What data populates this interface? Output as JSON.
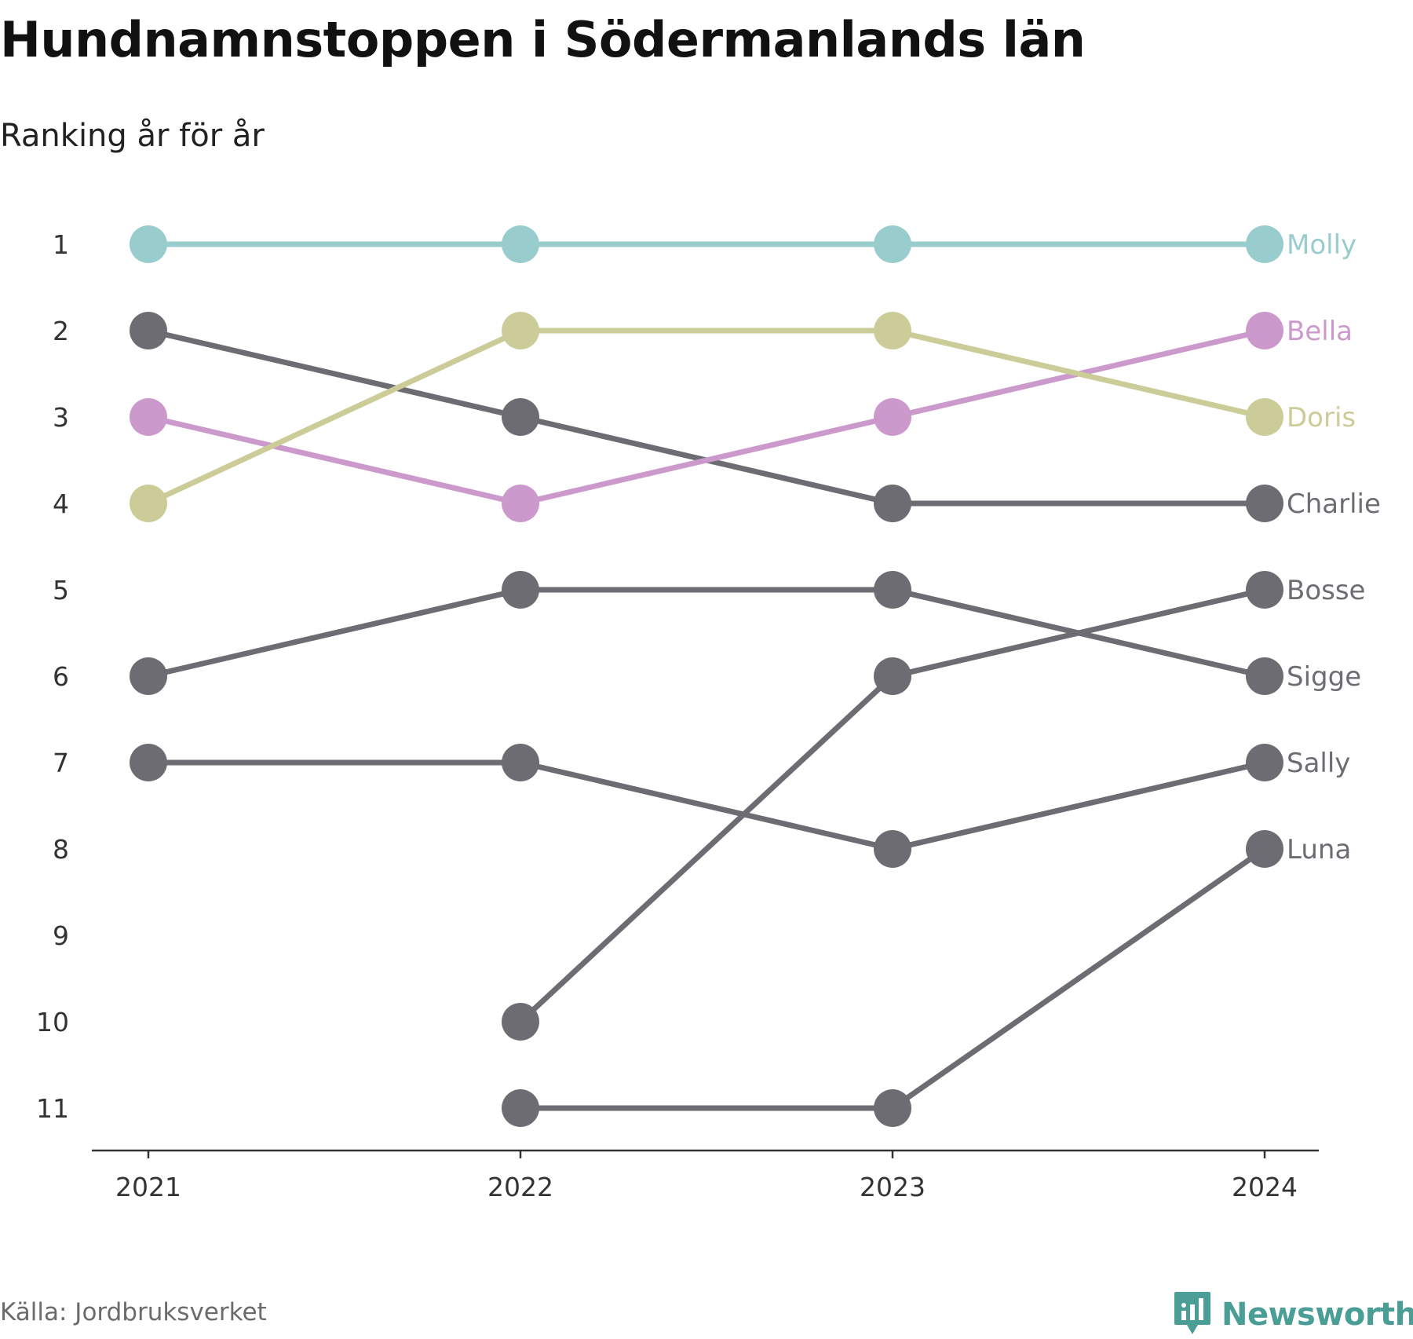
{
  "title": "Hundnamnstoppen i Södermanlands län",
  "subtitle": "Ranking år för år",
  "source": "Källa: Jordbruksverket",
  "brand": {
    "name": "Newsworthy",
    "icon": "newsworthy-logo-icon",
    "color": "#4a9e96"
  },
  "chart_data": {
    "type": "line",
    "title": "Hundnamnstoppen i Södermanlands län",
    "subtitle": "Ranking år för år",
    "x": [
      "2021",
      "2022",
      "2023",
      "2024"
    ],
    "y_ticks": [
      "1",
      "2",
      "3",
      "4",
      "5",
      "6",
      "7",
      "8",
      "9",
      "10",
      "11"
    ],
    "ylim": [
      1,
      11
    ],
    "y_inverted": true,
    "grid": false,
    "legend": "direct labels at right end of lines",
    "series": [
      {
        "name": "Molly",
        "values": [
          1,
          1,
          1,
          1
        ],
        "color": "#99cccc"
      },
      {
        "name": "Bella",
        "values": [
          3,
          4,
          3,
          2
        ],
        "color": "#cc99cc"
      },
      {
        "name": "Doris",
        "values": [
          4,
          2,
          2,
          3
        ],
        "color": "#cccc99"
      },
      {
        "name": "Charlie",
        "values": [
          2,
          3,
          4,
          4
        ],
        "color": "#6d6c73"
      },
      {
        "name": "Bosse",
        "values": [
          null,
          10,
          6,
          5
        ],
        "color": "#6d6c73"
      },
      {
        "name": "Sigge",
        "values": [
          6,
          5,
          5,
          6
        ],
        "color": "#6d6c73"
      },
      {
        "name": "Sally",
        "values": [
          7,
          7,
          8,
          7
        ],
        "color": "#6d6c73"
      },
      {
        "name": "Luna",
        "values": [
          null,
          11,
          11,
          8
        ],
        "color": "#6d6c73"
      }
    ]
  }
}
